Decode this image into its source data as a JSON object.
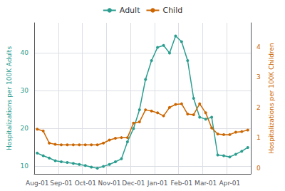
{
  "chart_data": {
    "type": "line",
    "categories": [
      "Aug-01",
      null,
      null,
      null,
      "Sep-01",
      null,
      null,
      null,
      "Oct-01",
      null,
      null,
      null,
      "Nov-01",
      null,
      null,
      null,
      "Dec-01",
      null,
      null,
      null,
      "Jan-01",
      null,
      null,
      null,
      "Feb-01",
      null,
      null,
      null,
      "Mar-01",
      null,
      null,
      null,
      "Apr-01",
      null,
      null,
      null
    ],
    "series": [
      {
        "name": "Adult",
        "color": "#2a9d8f",
        "axis": "y",
        "values": [
          13.5,
          12.8,
          12.2,
          11.5,
          11.2,
          11.0,
          10.8,
          10.5,
          10.2,
          9.8,
          9.5,
          10.0,
          10.5,
          11.2,
          12.0,
          16.5,
          20.0,
          25.0,
          33.0,
          38.0,
          41.5,
          42.0,
          40.0,
          44.5,
          43.0,
          38.0,
          28.0,
          23.0,
          22.5,
          23.0,
          13.0,
          12.8,
          12.5,
          13.2,
          14.0,
          15.0
        ]
      },
      {
        "name": "Child",
        "color": "#cc6600",
        "axis": "y2",
        "values": [
          1.28,
          1.22,
          0.82,
          0.78,
          0.76,
          0.76,
          0.76,
          0.76,
          0.76,
          0.76,
          0.76,
          0.82,
          0.92,
          0.98,
          1.0,
          1.0,
          1.48,
          1.52,
          1.92,
          1.88,
          1.82,
          1.72,
          2.0,
          2.1,
          2.12,
          1.78,
          1.76,
          2.12,
          1.82,
          1.32,
          1.12,
          1.1,
          1.1,
          1.18,
          1.2,
          1.25
        ]
      }
    ],
    "ylabel": "Hospitalizations per 100K Adults",
    "y2label": "Hospitalizations per 100K Children",
    "ylim": [
      8,
      48
    ],
    "yticks": [
      10,
      20,
      30,
      40
    ],
    "y2lim": [
      -0.2,
      4.8
    ],
    "y2ticks": [
      0,
      1,
      2,
      3,
      4
    ],
    "grid": true,
    "legend": "top",
    "marker": "circle"
  }
}
